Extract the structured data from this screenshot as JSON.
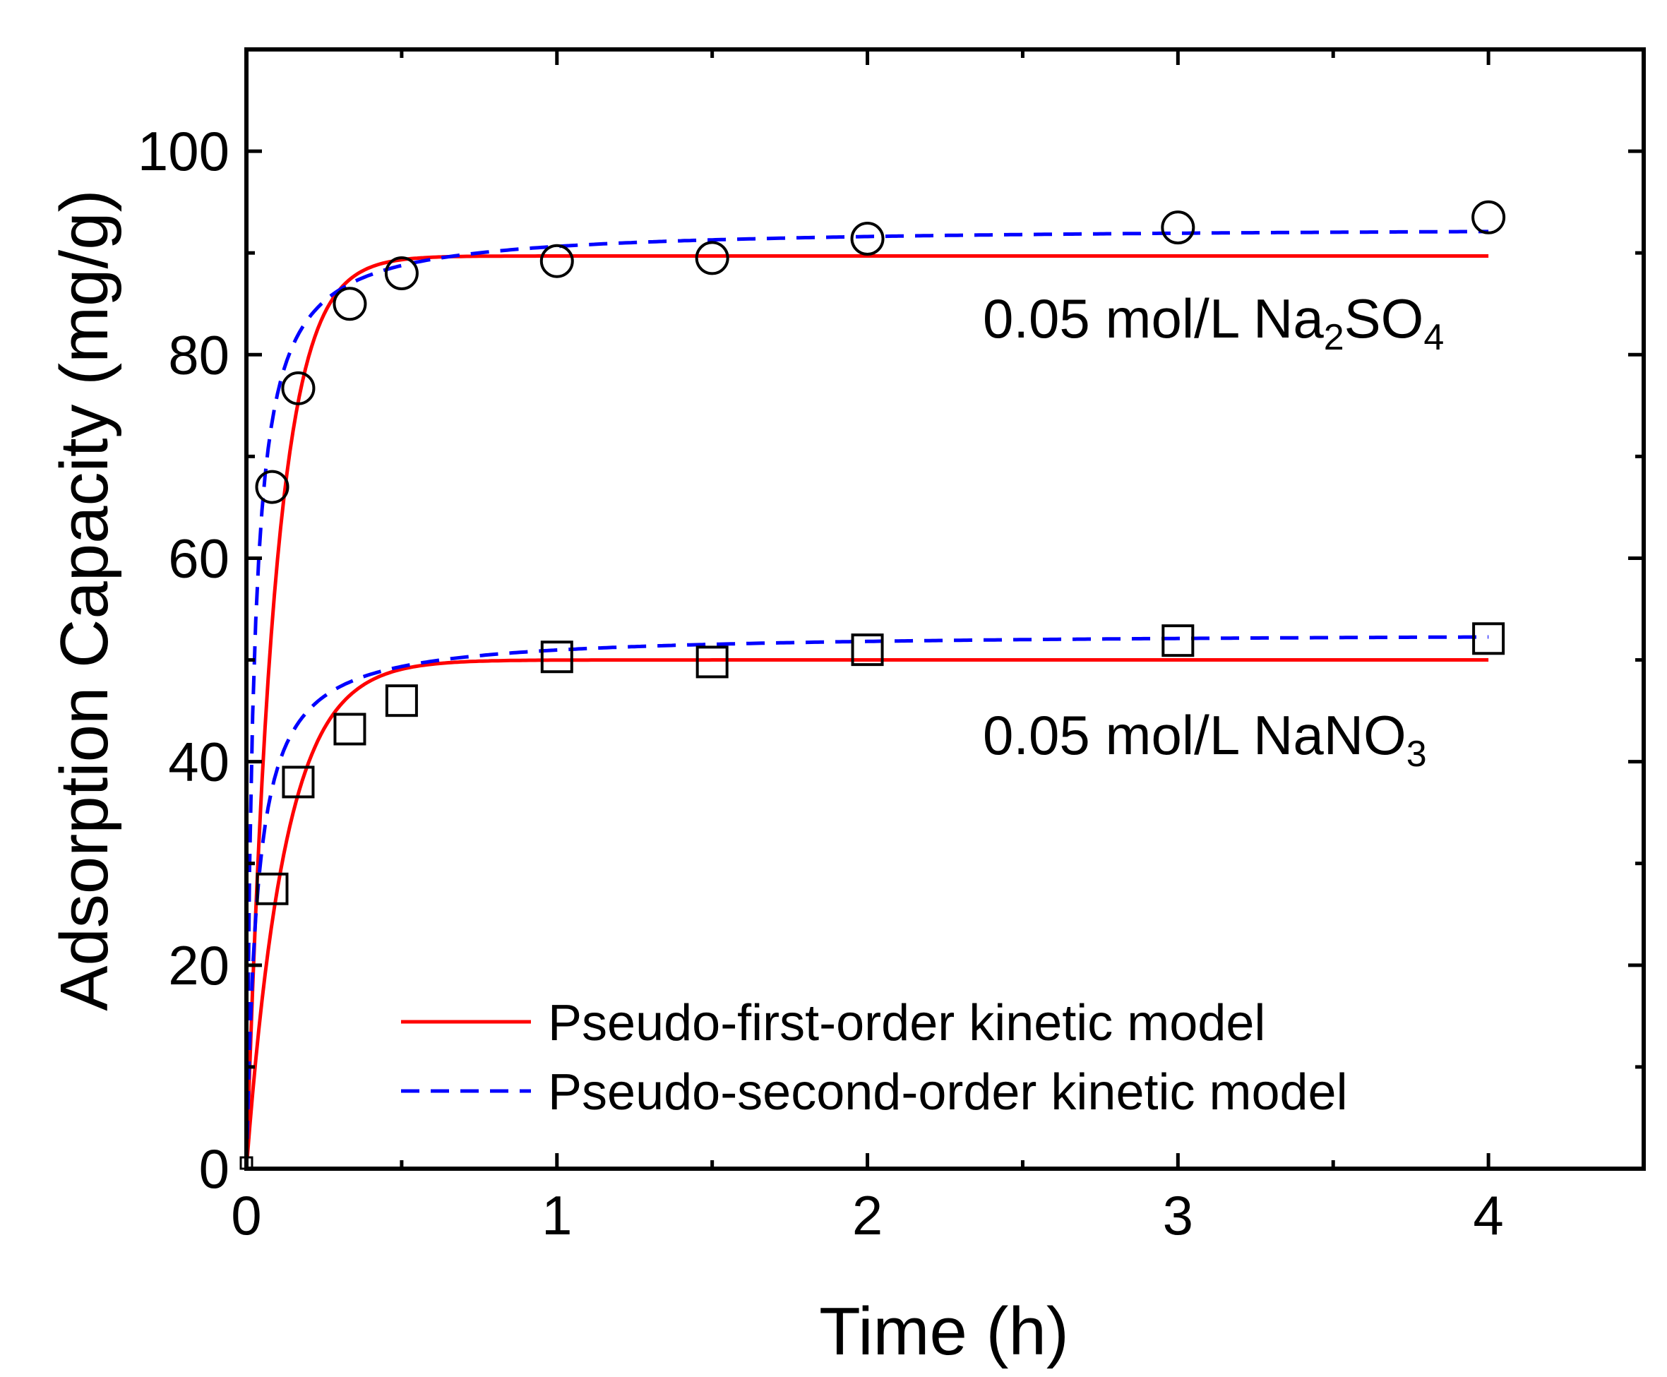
{
  "chart_data": {
    "type": "scatter",
    "title": "",
    "xlabel": "Time (h)",
    "ylabel": "Adsorption Capacity (mg/g)",
    "xlim": [
      0,
      4.5
    ],
    "ylim": [
      0,
      110
    ],
    "x_ticks": [
      0,
      1,
      2,
      3,
      4
    ],
    "y_ticks": [
      0,
      20,
      40,
      60,
      80,
      100
    ],
    "grid": false,
    "legend_position": "bottom-right",
    "series": [
      {
        "name": "0.05 mol/L Na2SO4",
        "marker": "circle",
        "x": [
          0,
          0.083,
          0.167,
          0.333,
          0.5,
          1,
          1.5,
          2,
          3,
          4
        ],
        "y": [
          0,
          67,
          76.7,
          85,
          88,
          89.2,
          89.5,
          91.4,
          92.5,
          93.5
        ]
      },
      {
        "name": "0.05 mol/L NaNO3",
        "marker": "square",
        "x": [
          0,
          0.083,
          0.167,
          0.333,
          0.5,
          1,
          1.5,
          2,
          3,
          4
        ],
        "y": [
          0,
          27.5,
          38,
          43.2,
          46,
          50.3,
          49.8,
          51,
          51.9,
          52.1
        ]
      }
    ],
    "fits": [
      {
        "name": "Pseudo-first-order kinetic model",
        "model": "pseudo-first-order",
        "color": "#ff0000",
        "style": "solid",
        "curves": [
          {
            "for": "0.05 mol/L Na2SO4",
            "qe": 89.7,
            "k": 11.0
          },
          {
            "for": "0.05 mol/L NaNO3",
            "qe": 50.0,
            "k": 8.0
          }
        ]
      },
      {
        "name": "Pseudo-second-order kinetic model",
        "model": "pseudo-second-order",
        "color": "#0000ff",
        "style": "dashed",
        "curves": [
          {
            "for": "0.05 mol/L Na2SO4",
            "qe": 92.6,
            "k": 0.5
          },
          {
            "for": "0.05 mol/L NaNO3",
            "qe": 52.7,
            "k": 0.56
          }
        ]
      }
    ],
    "annotations": [
      {
        "prefix": "0.05 mol/L Na",
        "sub1": "2",
        "mid": "SO",
        "sub2": "4",
        "plain": "0.05 mol/L Na2SO4"
      },
      {
        "prefix": "0.05 mol/L NaNO",
        "sub1": "3",
        "plain": "0.05 mol/L NaNO3"
      }
    ]
  }
}
